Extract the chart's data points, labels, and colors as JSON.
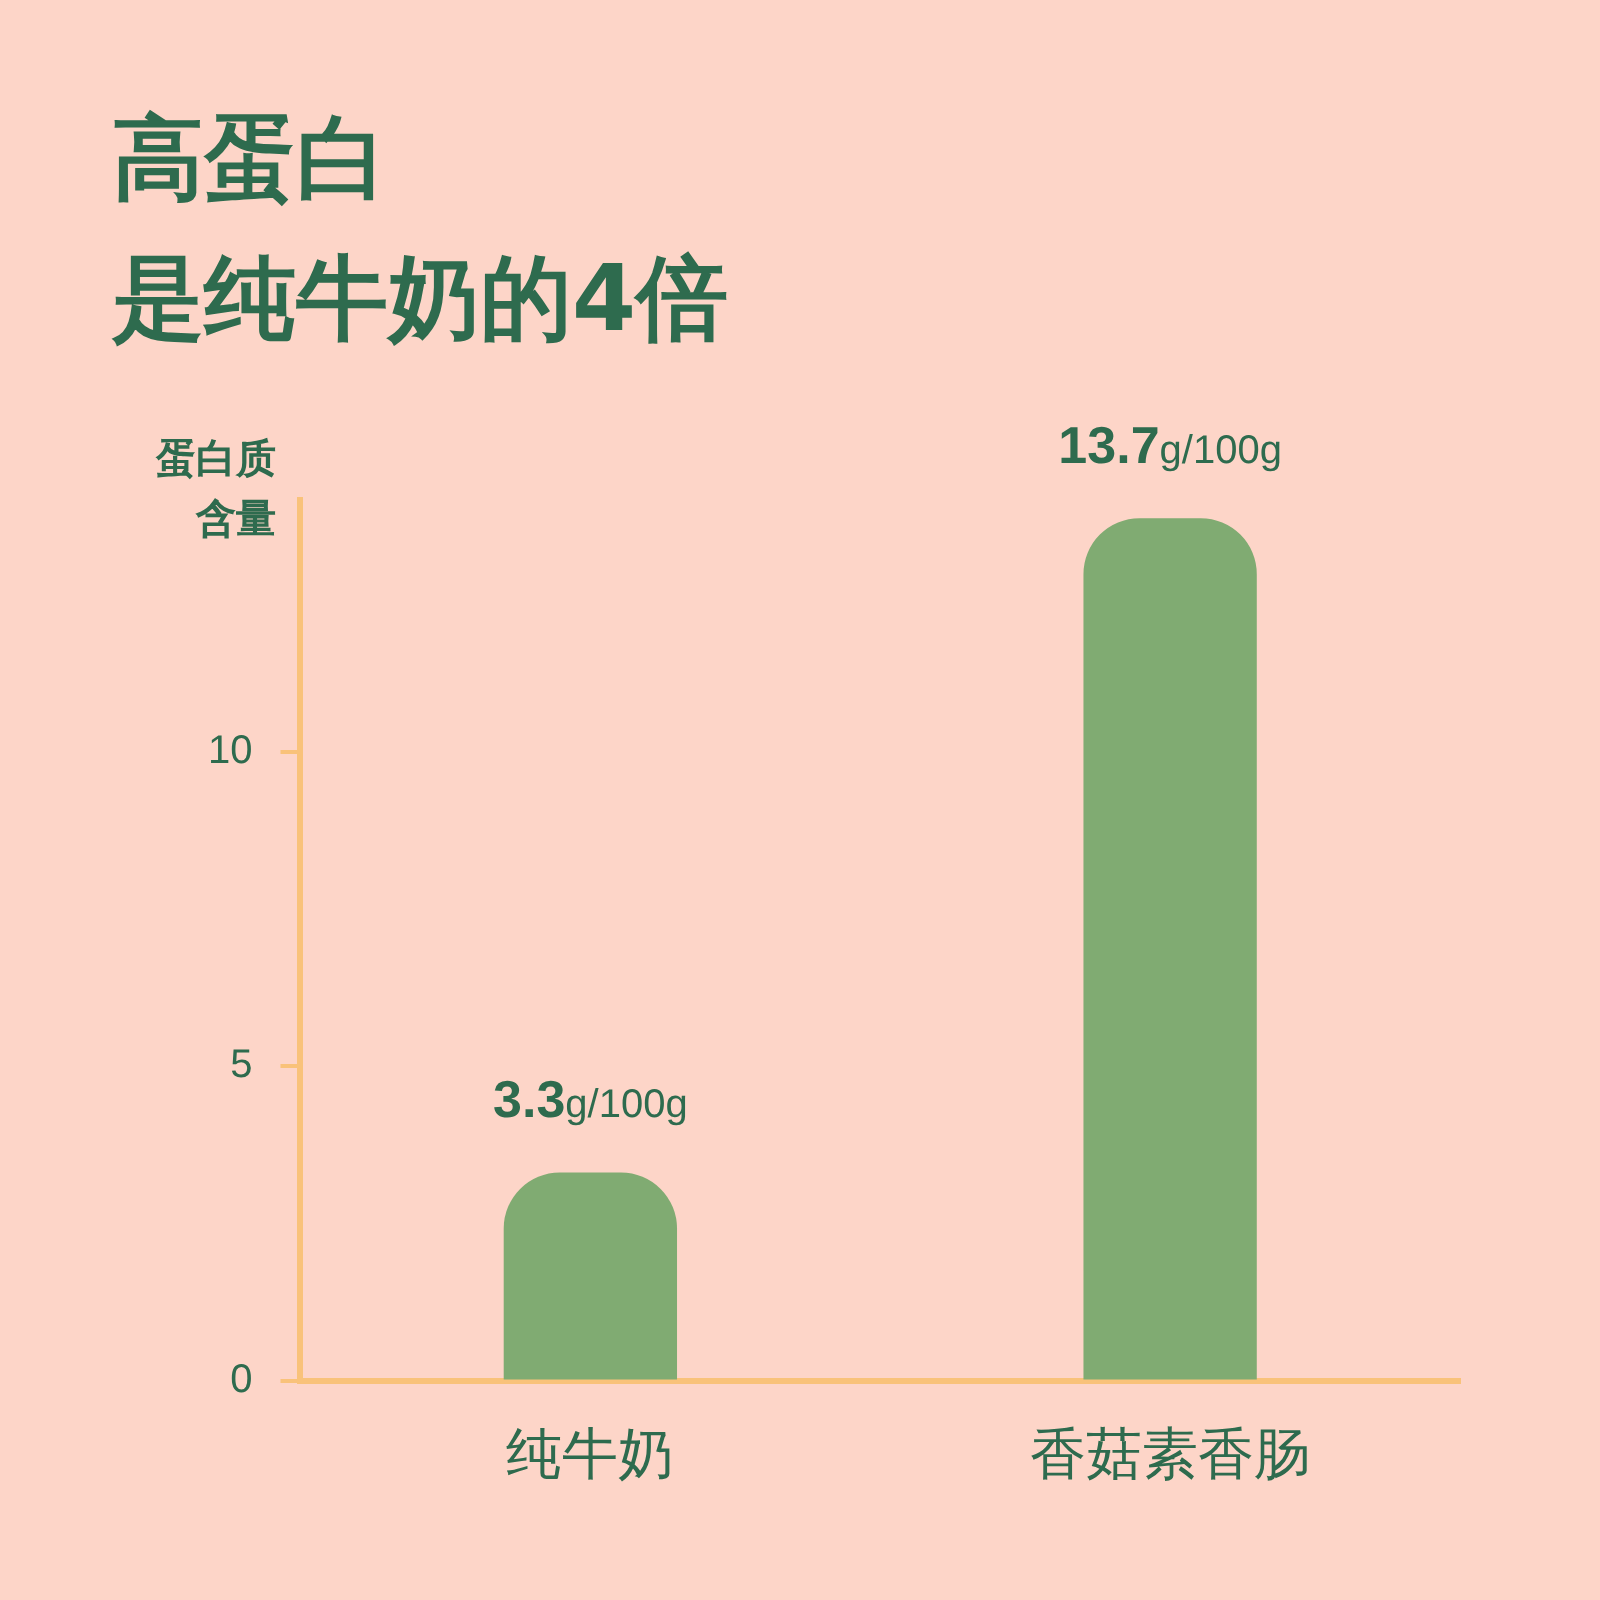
{
  "chart_data": {
    "type": "bar",
    "title": "高蛋白",
    "subtitle": "是纯牛奶的4倍",
    "ylabel": "蛋白质含量",
    "categories": [
      "纯牛奶",
      "香菇素香肠"
    ],
    "values": [
      3.3,
      13.7
    ],
    "value_labels": [
      "3.3g/100g",
      "13.7g/100g"
    ],
    "color": "#80ab72",
    "ylim": [
      0,
      14
    ],
    "yticks": [
      0,
      5,
      10
    ],
    "grid": false,
    "legend": false
  }
}
